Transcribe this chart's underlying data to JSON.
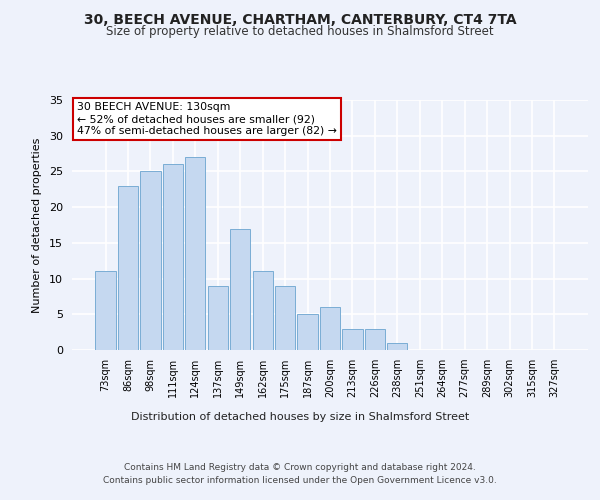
{
  "title_line1": "30, BEECH AVENUE, CHARTHAM, CANTERBURY, CT4 7TA",
  "title_line2": "Size of property relative to detached houses in Shalmsford Street",
  "xlabel": "Distribution of detached houses by size in Shalmsford Street",
  "ylabel": "Number of detached properties",
  "categories": [
    "73sqm",
    "86sqm",
    "98sqm",
    "111sqm",
    "124sqm",
    "137sqm",
    "149sqm",
    "162sqm",
    "175sqm",
    "187sqm",
    "200sqm",
    "213sqm",
    "226sqm",
    "238sqm",
    "251sqm",
    "264sqm",
    "277sqm",
    "289sqm",
    "302sqm",
    "315sqm",
    "327sqm"
  ],
  "values": [
    11,
    23,
    25,
    26,
    27,
    9,
    17,
    11,
    9,
    5,
    6,
    3,
    3,
    1,
    0,
    0,
    0,
    0,
    0,
    0,
    0
  ],
  "bar_color": "#c5d8f0",
  "bar_edge_color": "#7aadd4",
  "ylim": [
    0,
    35
  ],
  "yticks": [
    0,
    5,
    10,
    15,
    20,
    25,
    30,
    35
  ],
  "annotation_text": "30 BEECH AVENUE: 130sqm\n← 52% of detached houses are smaller (92)\n47% of semi-detached houses are larger (82) →",
  "annotation_box_color": "#ffffff",
  "annotation_box_edge_color": "#cc0000",
  "footer_line1": "Contains HM Land Registry data © Crown copyright and database right 2024.",
  "footer_line2": "Contains public sector information licensed under the Open Government Licence v3.0.",
  "background_color": "#eef2fb",
  "grid_color": "#ffffff"
}
